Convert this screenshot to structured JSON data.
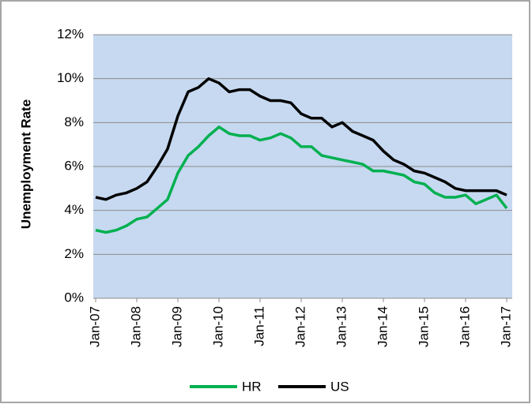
{
  "chart_data": {
    "type": "line",
    "y_label": "Unemployment Rate",
    "categories": [
      "Jan-07",
      null,
      null,
      null,
      "Jan-08",
      null,
      null,
      null,
      "Jan-09",
      null,
      null,
      null,
      "Jan-10",
      null,
      null,
      null,
      "Jan-11",
      null,
      null,
      null,
      "Jan-12",
      null,
      null,
      null,
      "Jan-13",
      null,
      null,
      null,
      "Jan-14",
      null,
      null,
      null,
      "Jan-15",
      null,
      null,
      null,
      "Jan-16",
      null,
      null,
      null,
      "Jan-17"
    ],
    "series": [
      {
        "name": "HR",
        "color": "#00b050",
        "values": [
          3.1,
          3.0,
          3.1,
          3.3,
          3.6,
          3.7,
          4.1,
          4.5,
          5.7,
          6.5,
          6.9,
          7.4,
          7.8,
          7.5,
          7.4,
          7.4,
          7.2,
          7.3,
          7.5,
          7.3,
          6.9,
          6.9,
          6.5,
          6.4,
          6.3,
          6.2,
          6.1,
          5.8,
          5.8,
          5.7,
          5.6,
          5.3,
          5.2,
          4.8,
          4.6,
          4.6,
          4.7,
          4.3,
          4.5,
          4.7,
          4.1
        ]
      },
      {
        "name": "US",
        "color": "#000000",
        "values": [
          4.6,
          4.5,
          4.7,
          4.8,
          5.0,
          5.3,
          6.0,
          6.8,
          8.3,
          9.4,
          9.6,
          10.0,
          9.8,
          9.4,
          9.5,
          9.5,
          9.2,
          9.0,
          9.0,
          8.9,
          8.4,
          8.2,
          8.2,
          7.8,
          8.0,
          7.6,
          7.4,
          7.2,
          6.7,
          6.3,
          6.1,
          5.8,
          5.7,
          5.5,
          5.3,
          5.0,
          4.9,
          4.9,
          4.9,
          4.9,
          4.7
        ]
      }
    ],
    "ylim": [
      0,
      12
    ],
    "yticks": [
      {
        "value": 0,
        "label": "0%"
      },
      {
        "value": 2,
        "label": "2%"
      },
      {
        "value": 4,
        "label": "4%"
      },
      {
        "value": 6,
        "label": "6%"
      },
      {
        "value": 8,
        "label": "8%"
      },
      {
        "value": 10,
        "label": "10%"
      },
      {
        "value": 12,
        "label": "12%"
      }
    ],
    "grid": true,
    "plot_background": "#c6d9f0",
    "legend": "bottom"
  }
}
